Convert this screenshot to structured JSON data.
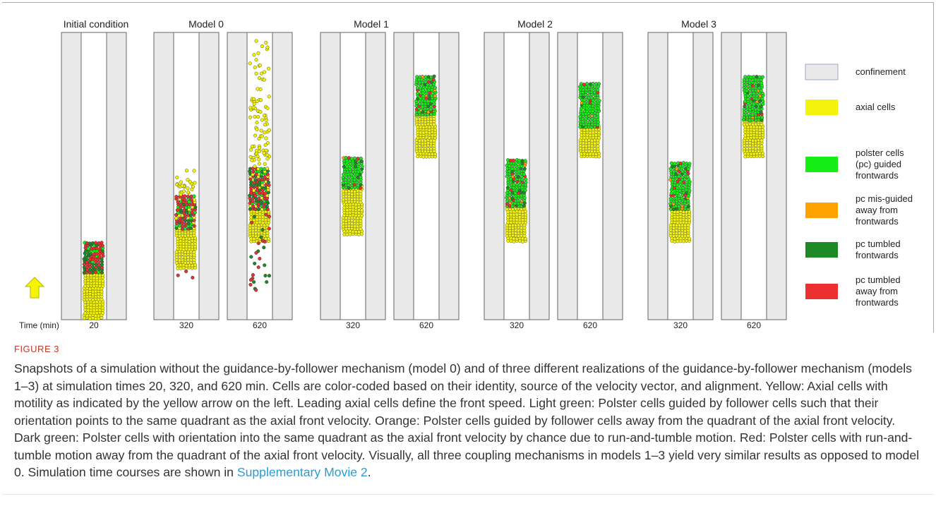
{
  "figure": {
    "panel_titles": [
      "Initial condition",
      "Model 0",
      "Model 1",
      "Model 2",
      "Model 3"
    ],
    "time_axis_label": "Time (min)",
    "time_labels": [
      "20",
      "320",
      "620",
      "320",
      "620",
      "320",
      "620",
      "320",
      "620"
    ],
    "legend": [
      {
        "label_lines": [
          "confinement"
        ],
        "color": "#e9e9e9"
      },
      {
        "label_lines": [
          "axial cells"
        ],
        "color": "#f2f20c"
      },
      {
        "label_lines": [
          "polster cells",
          "(pc) guided",
          "frontwards"
        ],
        "color": "#14ee14"
      },
      {
        "label_lines": [
          "pc mis-guided",
          "away from",
          "frontwards"
        ],
        "color": "#ffa200"
      },
      {
        "label_lines": [
          "pc tumbled",
          "frontwards"
        ],
        "color": "#1e8a25"
      },
      {
        "label_lines": [
          "pc tumbled",
          "away from",
          "frontwards"
        ],
        "color": "#ec2f2f"
      }
    ],
    "colors": {
      "confinement": "#e9e9e9",
      "axial": "#f2f20c",
      "pc_guided": "#14ee14",
      "pc_misguided": "#ffa200",
      "pc_tumbled_front": "#1e8a25",
      "pc_tumbled_away": "#ec2f2f",
      "arrow": "#f5f500"
    }
  },
  "caption": {
    "label": "FIGURE 3",
    "text": "Snapshots of a simulation without the guidance-by-follower mechanism (model 0) and of three different realizations of the guidance-by-follower mechanism (models 1–3) at simulation times 20, 320, and 620 min. Cells are color-coded based on their identity, source of the velocity vector, and alignment. Yellow: Axial cells with motility as indicated by the yellow arrow on the left. Leading axial cells define the front speed. Light green: Polster cells guided by follower cells such that their orientation points to the same quadrant as the axial front velocity. Orange: Polster cells guided by follower cells away from the quadrant of the axial front velocity. Dark green: Polster cells with orientation into the same quadrant as the axial front velocity by chance due to run-and-tumble motion. Red: Polster cells with run-and-tumble motion away from the quadrant of the axial front velocity. Visually, all three coupling mechanisms in models 1–3 yield very similar results as opposed to model 0. Simulation time courses are shown in ",
    "link": "Supplementary Movie 2",
    "end": "."
  }
}
